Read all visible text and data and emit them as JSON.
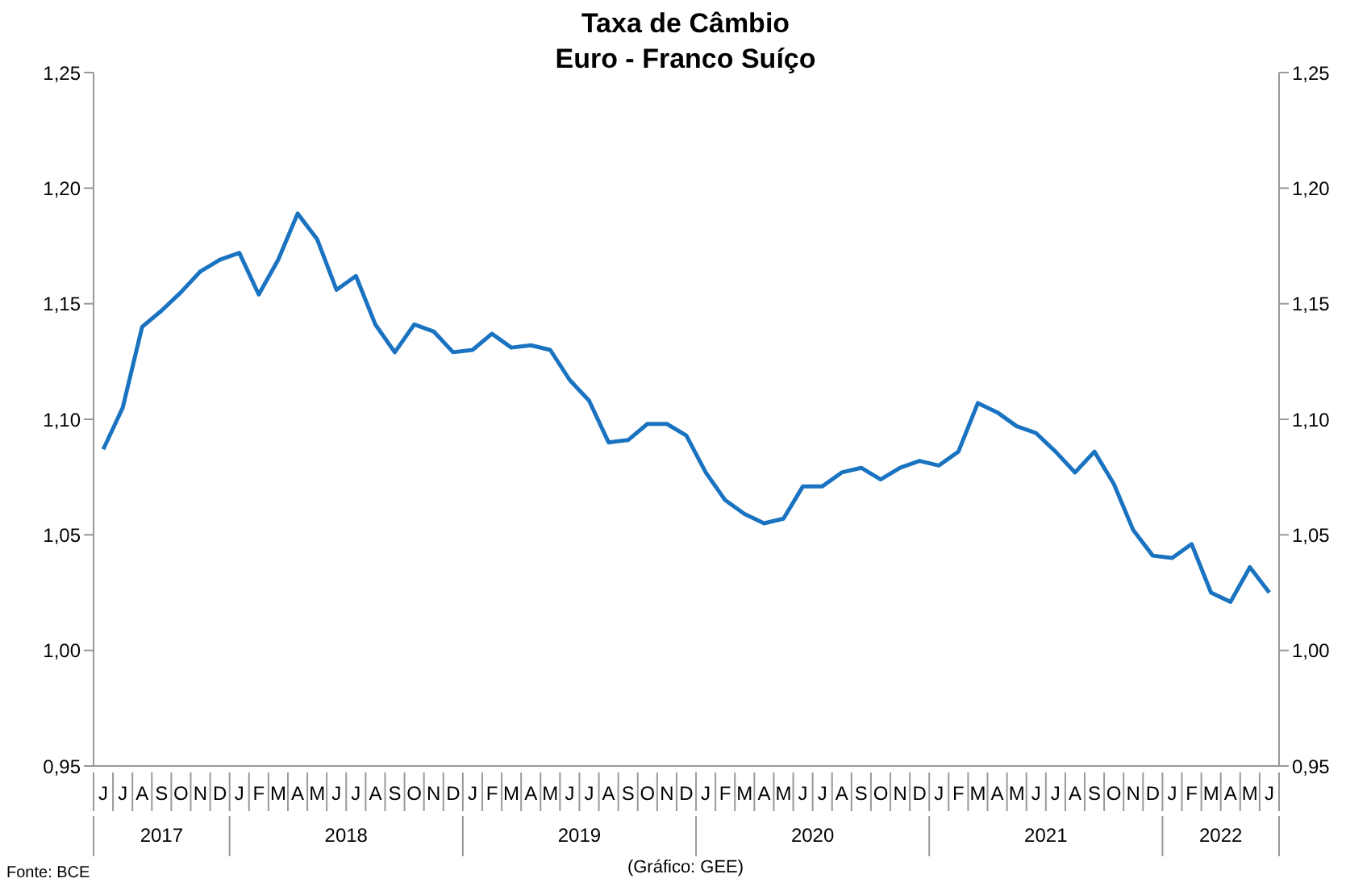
{
  "chart_data": {
    "type": "line",
    "title": "Taxa de Câmbio",
    "subtitle": "Euro - Franco Suíço",
    "categories": [
      "J",
      "J",
      "A",
      "S",
      "O",
      "N",
      "D",
      "J",
      "F",
      "M",
      "A",
      "M",
      "J",
      "J",
      "A",
      "S",
      "O",
      "N",
      "D",
      "J",
      "F",
      "M",
      "A",
      "M",
      "J",
      "J",
      "A",
      "S",
      "O",
      "N",
      "D",
      "J",
      "F",
      "M",
      "A",
      "M",
      "J",
      "J",
      "A",
      "S",
      "O",
      "N",
      "D",
      "J",
      "F",
      "M",
      "A",
      "M",
      "J",
      "J",
      "A",
      "S",
      "O",
      "N",
      "D",
      "J",
      "F",
      "M",
      "A",
      "M",
      "J"
    ],
    "series": [
      {
        "color": "#1a73c0",
        "values": [
          1.087,
          1.105,
          1.14,
          1.147,
          1.155,
          1.164,
          1.169,
          1.172,
          1.154,
          1.169,
          1.189,
          1.178,
          1.156,
          1.162,
          1.141,
          1.129,
          1.141,
          1.138,
          1.129,
          1.13,
          1.137,
          1.131,
          1.132,
          1.13,
          1.117,
          1.108,
          1.09,
          1.091,
          1.098,
          1.098,
          1.093,
          1.077,
          1.065,
          1.059,
          1.055,
          1.057,
          1.071,
          1.071,
          1.077,
          1.079,
          1.074,
          1.079,
          1.082,
          1.08,
          1.086,
          1.107,
          1.103,
          1.097,
          1.094,
          1.086,
          1.077,
          1.086,
          1.072,
          1.052,
          1.041,
          1.04,
          1.046,
          1.025,
          1.021,
          1.036,
          1.025
        ]
      }
    ],
    "ylim": [
      0.95,
      1.25
    ],
    "yticks": [
      {
        "value": 0.95,
        "label": "0,95"
      },
      {
        "value": 1.0,
        "label": "1,00"
      },
      {
        "value": 1.05,
        "label": "1,05"
      },
      {
        "value": 1.1,
        "label": "1,10"
      },
      {
        "value": 1.15,
        "label": "1,15"
      },
      {
        "value": 1.2,
        "label": "1,20"
      },
      {
        "value": 1.25,
        "label": "1,25"
      }
    ],
    "y2lim": [
      0.95,
      1.25
    ],
    "y2ticks": [
      {
        "value": 0.95,
        "label": "0,95"
      },
      {
        "value": 1.0,
        "label": "1,00"
      },
      {
        "value": 1.05,
        "label": "1,05"
      },
      {
        "value": 1.1,
        "label": "1,10"
      },
      {
        "value": 1.15,
        "label": "1,15"
      },
      {
        "value": 1.2,
        "label": "1,20"
      },
      {
        "value": 1.25,
        "label": "1,25"
      }
    ],
    "marker": "none",
    "line_style": "solid",
    "grid": false,
    "annotations": [
      "2017",
      "2018",
      "2019",
      "2020",
      "2021",
      "2022",
      "Fonte: BCE",
      "(Gráfico: GEE)"
    ]
  }
}
